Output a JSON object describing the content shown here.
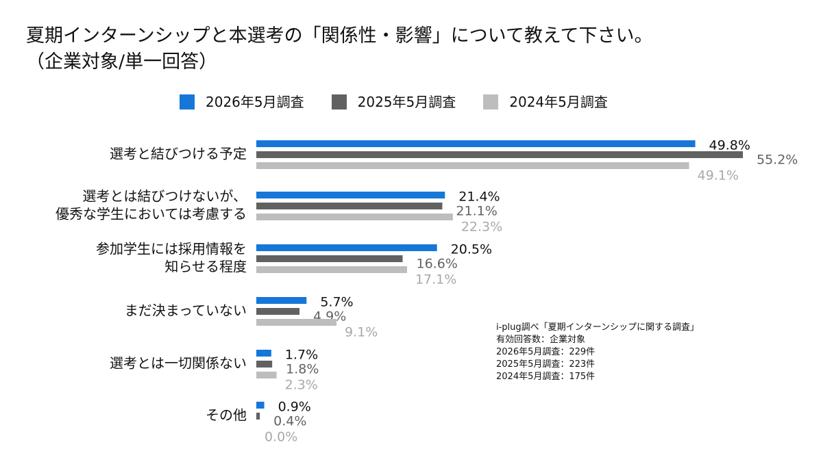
{
  "title_lines": [
    "夏期インターンシップと本選考の「関係性・影響」について教えて下さい。",
    "（企業対象/単一回答）"
  ],
  "colors": {
    "series_2026": "#1677d9",
    "series_2025": "#616161",
    "series_2024": "#bdbdbd",
    "label_2026": "#111111",
    "label_2025": "#616161",
    "label_2024": "#a8a8a8"
  },
  "chart_data": {
    "type": "bar",
    "orientation": "horizontal",
    "title": "夏期インターンシップと本選考の「関係性・影響」について教えて下さい。（企業対象/単一回答）",
    "legend_position": "top",
    "grid": false,
    "xlim": [
      0,
      55.2
    ],
    "categories": [
      [
        "選考と結びつける予定"
      ],
      [
        "選考とは結びつけないが、",
        "優秀な学生においては考慮する"
      ],
      [
        "参加学生には採用情報を",
        "知らせる程度"
      ],
      [
        "まだ決まっていない"
      ],
      [
        "選考とは一切関係ない"
      ],
      [
        "その他"
      ]
    ],
    "series": [
      {
        "name": "2026年5月調査",
        "values": [
          49.8,
          21.4,
          20.5,
          5.7,
          1.7,
          0.9
        ],
        "labels": [
          "49.8%",
          "21.4%",
          "20.5%",
          "5.7%",
          "1.7%",
          "0.9%"
        ]
      },
      {
        "name": "2025年5月調査",
        "values": [
          55.2,
          21.1,
          16.6,
          4.9,
          1.8,
          0.4
        ],
        "labels": [
          "55.2%",
          "21.1%",
          "16.6%",
          "4.9%",
          "1.8%",
          "0.4%"
        ]
      },
      {
        "name": "2024年5月調査",
        "values": [
          49.1,
          22.3,
          17.1,
          9.1,
          2.3,
          0.0
        ],
        "labels": [
          "49.1%",
          "22.3%",
          "17.1%",
          "9.1%",
          "2.3%",
          "0.0%"
        ]
      }
    ]
  },
  "note_lines": [
    "i-plug調べ「夏期インターンシップに関する調査」",
    "有効回答数：企業対象",
    "2026年5月調査：229件",
    "2025年5月調査：223件",
    "2024年5月調査：175件"
  ]
}
